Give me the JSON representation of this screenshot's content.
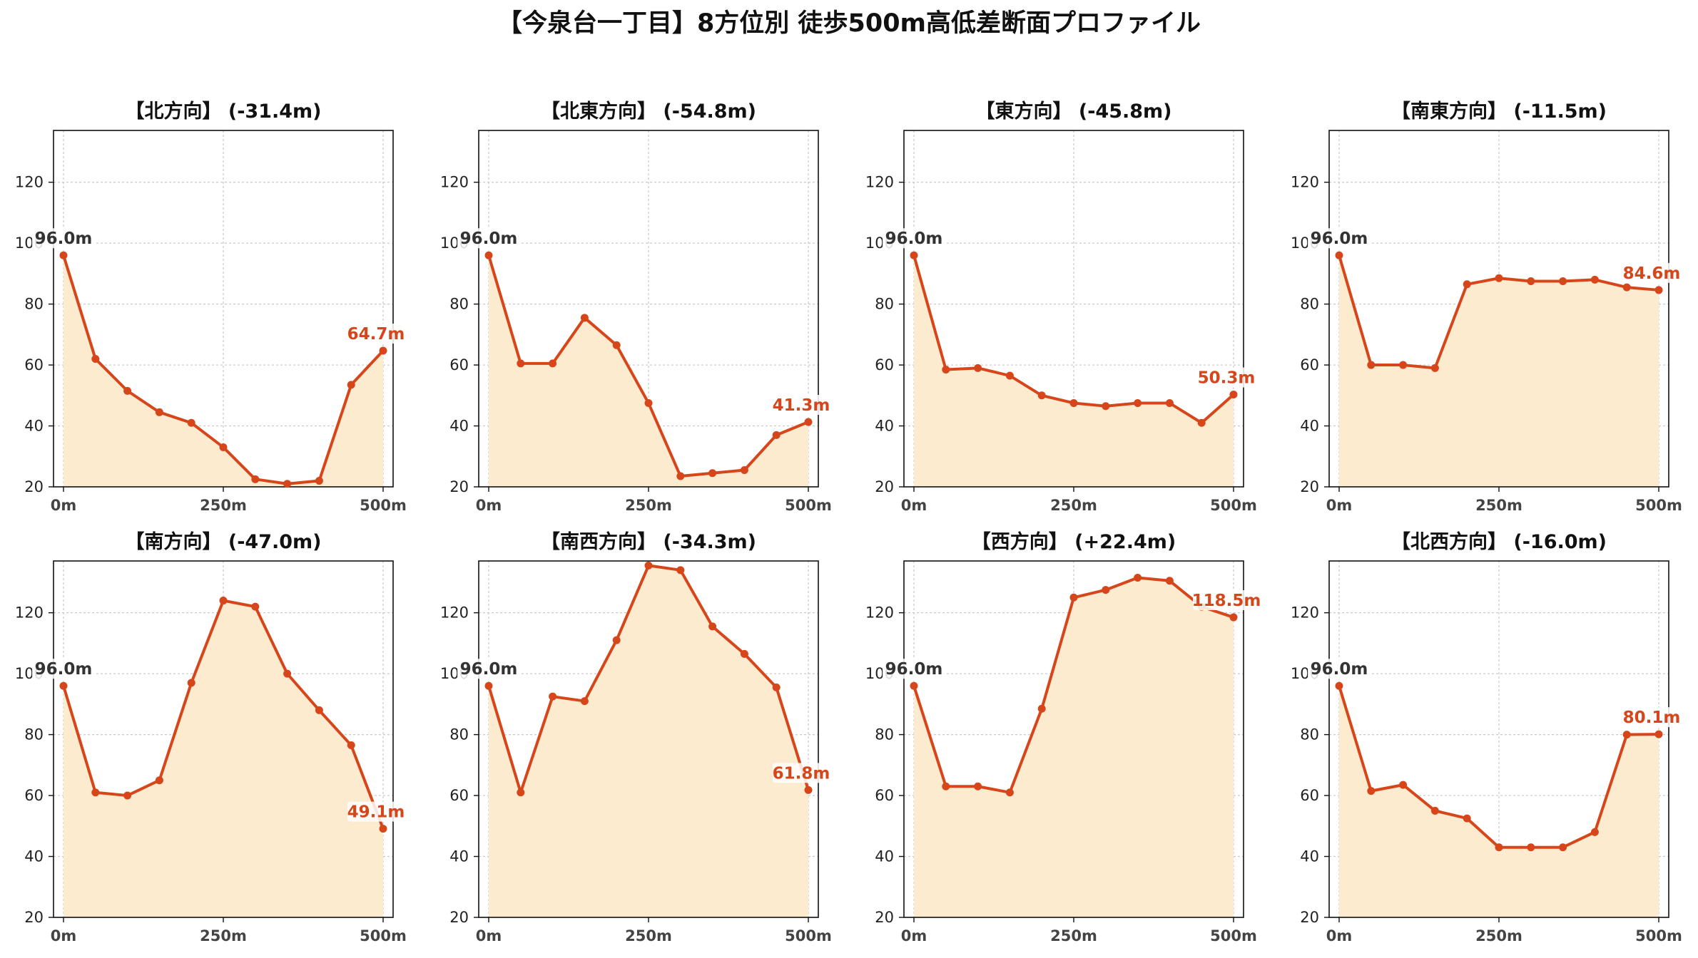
{
  "figure": {
    "title": "【今泉台一丁目】8方位別 徒歩500m高低差断面プロファイル"
  },
  "colors": {
    "line": "#d6461a",
    "fill": "#fdebd0",
    "start_label": "#333333",
    "end_label": "#d6461a",
    "grid": "#c8c8c8"
  },
  "chart_data": [
    {
      "type": "area",
      "title": "【北方向】 (-31.4m)",
      "x": [
        0,
        50,
        100,
        150,
        200,
        250,
        300,
        350,
        400,
        450,
        500
      ],
      "xticks": [
        0,
        250,
        500
      ],
      "xtick_labels": [
        "0m",
        "250m",
        "500m"
      ],
      "yticks": [
        20,
        40,
        60,
        80,
        100,
        120
      ],
      "ytick_labels": [
        "20",
        "40",
        "60",
        "80",
        "100",
        "120"
      ],
      "ylim": [
        20,
        137
      ],
      "values": [
        96.0,
        62,
        51.5,
        44.5,
        41,
        33,
        22.5,
        21,
        22,
        53.5,
        64.7
      ],
      "start_label": "96.0m",
      "end_label": "64.7m",
      "grid": true
    },
    {
      "type": "area",
      "title": "【北東方向】 (-54.8m)",
      "x": [
        0,
        50,
        100,
        150,
        200,
        250,
        300,
        350,
        400,
        450,
        500
      ],
      "xticks": [
        0,
        250,
        500
      ],
      "xtick_labels": [
        "0m",
        "250m",
        "500m"
      ],
      "yticks": [
        20,
        40,
        60,
        80,
        100,
        120
      ],
      "ytick_labels": [
        "20",
        "40",
        "60",
        "80",
        "100",
        "120"
      ],
      "ylim": [
        20,
        137
      ],
      "values": [
        96.0,
        60.5,
        60.5,
        75.5,
        66.5,
        47.5,
        23.5,
        24.5,
        25.5,
        37,
        41.3
      ],
      "start_label": "96.0m",
      "end_label": "41.3m",
      "grid": true
    },
    {
      "type": "area",
      "title": "【東方向】 (-45.8m)",
      "x": [
        0,
        50,
        100,
        150,
        200,
        250,
        300,
        350,
        400,
        450,
        500
      ],
      "xticks": [
        0,
        250,
        500
      ],
      "xtick_labels": [
        "0m",
        "250m",
        "500m"
      ],
      "yticks": [
        20,
        40,
        60,
        80,
        100,
        120
      ],
      "ytick_labels": [
        "20",
        "40",
        "60",
        "80",
        "100",
        "120"
      ],
      "ylim": [
        20,
        137
      ],
      "values": [
        96.0,
        58.5,
        59,
        56.5,
        50,
        47.5,
        46.5,
        47.5,
        47.5,
        41,
        50.3
      ],
      "start_label": "96.0m",
      "end_label": "50.3m",
      "grid": true
    },
    {
      "type": "area",
      "title": "【南東方向】 (-11.5m)",
      "x": [
        0,
        50,
        100,
        150,
        200,
        250,
        300,
        350,
        400,
        450,
        500
      ],
      "xticks": [
        0,
        250,
        500
      ],
      "xtick_labels": [
        "0m",
        "250m",
        "500m"
      ],
      "yticks": [
        20,
        40,
        60,
        80,
        100,
        120
      ],
      "ytick_labels": [
        "20",
        "40",
        "60",
        "80",
        "100",
        "120"
      ],
      "ylim": [
        20,
        137
      ],
      "values": [
        96.0,
        60,
        60,
        59,
        86.5,
        88.5,
        87.5,
        87.5,
        88,
        85.5,
        84.6
      ],
      "start_label": "96.0m",
      "end_label": "84.6m",
      "grid": true
    },
    {
      "type": "area",
      "title": "【南方向】 (-47.0m)",
      "x": [
        0,
        50,
        100,
        150,
        200,
        250,
        300,
        350,
        400,
        450,
        500
      ],
      "xticks": [
        0,
        250,
        500
      ],
      "xtick_labels": [
        "0m",
        "250m",
        "500m"
      ],
      "yticks": [
        20,
        40,
        60,
        80,
        100,
        120
      ],
      "ytick_labels": [
        "20",
        "40",
        "60",
        "80",
        "100",
        "120"
      ],
      "ylim": [
        20,
        137
      ],
      "values": [
        96.0,
        61,
        60,
        65,
        97,
        124,
        122,
        100,
        88,
        76.5,
        49.1
      ],
      "start_label": "96.0m",
      "end_label": "49.1m",
      "grid": true
    },
    {
      "type": "area",
      "title": "【南西方向】 (-34.3m)",
      "x": [
        0,
        50,
        100,
        150,
        200,
        250,
        300,
        350,
        400,
        450,
        500
      ],
      "xticks": [
        0,
        250,
        500
      ],
      "xtick_labels": [
        "0m",
        "250m",
        "500m"
      ],
      "yticks": [
        20,
        40,
        60,
        80,
        100,
        120
      ],
      "ytick_labels": [
        "20",
        "40",
        "60",
        "80",
        "100",
        "120"
      ],
      "ylim": [
        20,
        137
      ],
      "values": [
        96.0,
        61,
        92.5,
        91,
        111,
        135.5,
        134,
        115.5,
        106.5,
        95.5,
        61.8
      ],
      "start_label": "96.0m",
      "end_label": "61.8m",
      "grid": true
    },
    {
      "type": "area",
      "title": "【西方向】 (+22.4m)",
      "x": [
        0,
        50,
        100,
        150,
        200,
        250,
        300,
        350,
        400,
        450,
        500
      ],
      "xticks": [
        0,
        250,
        500
      ],
      "xtick_labels": [
        "0m",
        "250m",
        "500m"
      ],
      "yticks": [
        20,
        40,
        60,
        80,
        100,
        120
      ],
      "ytick_labels": [
        "20",
        "40",
        "60",
        "80",
        "100",
        "120"
      ],
      "ylim": [
        20,
        137
      ],
      "values": [
        96.0,
        63,
        63,
        61,
        88.5,
        125,
        127.5,
        131.5,
        130.5,
        122,
        118.5
      ],
      "start_label": "96.0m",
      "end_label": "118.5m",
      "grid": true
    },
    {
      "type": "area",
      "title": "【北西方向】 (-16.0m)",
      "x": [
        0,
        50,
        100,
        150,
        200,
        250,
        300,
        350,
        400,
        450,
        500
      ],
      "xticks": [
        0,
        250,
        500
      ],
      "xtick_labels": [
        "0m",
        "250m",
        "500m"
      ],
      "yticks": [
        20,
        40,
        60,
        80,
        100,
        120
      ],
      "ytick_labels": [
        "20",
        "40",
        "60",
        "80",
        "100",
        "120"
      ],
      "ylim": [
        20,
        137
      ],
      "values": [
        96.0,
        61.5,
        63.5,
        55,
        52.5,
        43,
        43,
        43,
        48,
        80,
        80.1
      ],
      "start_label": "96.0m",
      "end_label": "80.1m",
      "grid": true
    }
  ]
}
